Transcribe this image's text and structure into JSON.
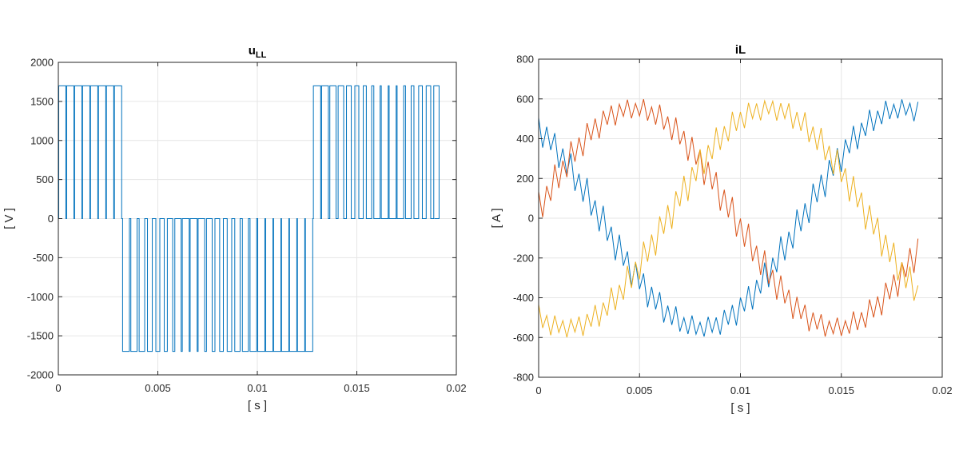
{
  "chart_data": [
    {
      "type": "line",
      "title": "u",
      "title_subscript": "LL",
      "xlabel": "[ s ]",
      "ylabel": "[ V ]",
      "xlim": [
        0,
        0.02
      ],
      "ylim": [
        -2000,
        2000
      ],
      "xticks": [
        0,
        0.005,
        0.01,
        0.015,
        0.02
      ],
      "xtick_labels": [
        "0",
        "0.005",
        "0.01",
        "0.015",
        "0.02"
      ],
      "yticks": [
        -2000,
        -1500,
        -1000,
        -500,
        0,
        500,
        1000,
        1500,
        2000
      ],
      "ytick_labels": [
        "-2000",
        "-1500",
        "-1000",
        "-500",
        "0",
        "500",
        "1000",
        "1500",
        "2000"
      ],
      "grid": true,
      "series": [
        {
          "color": "#0072BD",
          "pwm": {
            "amplitude": 1700,
            "carrier_period": 0.0004,
            "fundamental_frequency": 50,
            "t_end": 0.0189,
            "positive_until": 0.0031,
            "negative_from": 0.0033,
            "negative_until": 0.0126,
            "positive_from": 0.0128
          }
        }
      ]
    },
    {
      "type": "line",
      "title": "iL",
      "xlabel": "[ s ]",
      "ylabel": "[ A ]",
      "xlim": [
        0,
        0.02
      ],
      "ylim": [
        -800,
        800
      ],
      "xticks": [
        0,
        0.005,
        0.01,
        0.015,
        0.02
      ],
      "xtick_labels": [
        "0",
        "0.005",
        "0.01",
        "0.015",
        "0.02"
      ],
      "yticks": [
        -800,
        -600,
        -400,
        -200,
        0,
        200,
        400,
        600,
        800
      ],
      "ytick_labels": [
        "-800",
        "-600",
        "-400",
        "-200",
        "0",
        "200",
        "400",
        "600",
        "800"
      ],
      "grid": true,
      "series": [
        {
          "color": "#0072BD",
          "amplitude": 550,
          "phase_deg": 125,
          "ripple": 90
        },
        {
          "color": "#D95319",
          "amplitude": 550,
          "phase_deg": 5,
          "ripple": 90
        },
        {
          "color": "#EDB120",
          "amplitude": 550,
          "phase_deg": -115,
          "ripple": 90
        }
      ],
      "frequency": 50,
      "ripple_period": 0.0004,
      "t_end": 0.0189
    }
  ]
}
